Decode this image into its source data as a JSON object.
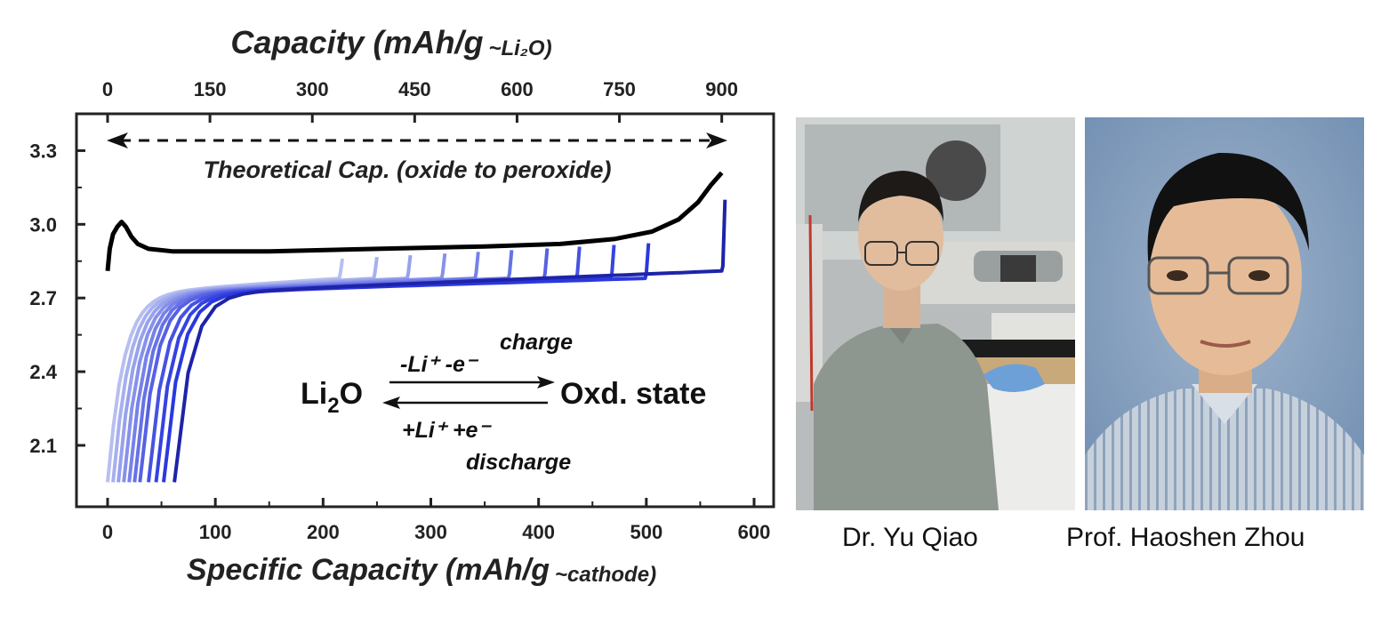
{
  "chart_data": {
    "type": "line",
    "top_axis": {
      "title_main": "Capacity (mAh/g",
      "title_sub": "~Li₂O)",
      "ticks": [
        "0",
        "150",
        "300",
        "450",
        "600",
        "750",
        "900"
      ],
      "range": [
        0,
        900
      ]
    },
    "x_axis": {
      "title_main": "Specific Capacity (mAh/g",
      "title_sub": "~cathode)",
      "ticks": [
        "0",
        "100",
        "200",
        "300",
        "400",
        "500",
        "600"
      ],
      "range": [
        0,
        600
      ]
    },
    "y_axis": {
      "ticks": [
        "2.1",
        "2.4",
        "2.7",
        "3.0",
        "3.3"
      ],
      "range": [
        1.85,
        3.45
      ]
    },
    "annotations": {
      "theoretical": "Theoretical Cap. (oxide to peroxide)",
      "theoretical_range": [
        0,
        570
      ]
    },
    "reaction": {
      "left": "Li",
      "left_sub": "2",
      "left_end": "O",
      "right": "Oxd. state",
      "charge_top": "charge",
      "charge_label": "-Li⁺ -e⁻",
      "discharge_label": "+Li⁺ +e⁻",
      "discharge_bottom": "discharge"
    },
    "series": [
      {
        "color": "#000000",
        "type": "black",
        "points": [
          [
            0,
            2.81
          ],
          [
            2,
            2.9
          ],
          [
            5,
            2.96
          ],
          [
            9,
            2.99
          ],
          [
            13,
            3.01
          ],
          [
            17,
            2.99
          ],
          [
            22,
            2.95
          ],
          [
            28,
            2.92
          ],
          [
            38,
            2.9
          ],
          [
            60,
            2.89
          ],
          [
            150,
            2.89
          ],
          [
            250,
            2.9
          ],
          [
            350,
            2.91
          ],
          [
            420,
            2.92
          ],
          [
            470,
            2.94
          ],
          [
            505,
            2.97
          ],
          [
            530,
            3.02
          ],
          [
            548,
            3.09
          ],
          [
            560,
            3.16
          ],
          [
            570,
            3.21
          ]
        ]
      },
      {
        "color": "#b7bff0",
        "start": 0,
        "end": 215
      },
      {
        "color": "#a7b0ee",
        "start": 5,
        "end": 247
      },
      {
        "color": "#97a1ec",
        "start": 10,
        "end": 278
      },
      {
        "color": "#8791ea",
        "start": 15,
        "end": 310
      },
      {
        "color": "#7781e8",
        "start": 20,
        "end": 341
      },
      {
        "color": "#6772e6",
        "start": 25,
        "end": 372
      },
      {
        "color": "#5761e4",
        "start": 30,
        "end": 405
      },
      {
        "color": "#4552e2",
        "start": 38,
        "end": 435
      },
      {
        "color": "#3543e0",
        "start": 45,
        "end": 467
      },
      {
        "color": "#2a38de",
        "start": 52,
        "end": 499
      },
      {
        "color": "#1e23a8",
        "start": 62,
        "end": 570
      }
    ]
  },
  "photos": [
    {
      "caption": "Dr. Yu Qiao"
    },
    {
      "caption": "Prof. Haoshen Zhou"
    }
  ]
}
